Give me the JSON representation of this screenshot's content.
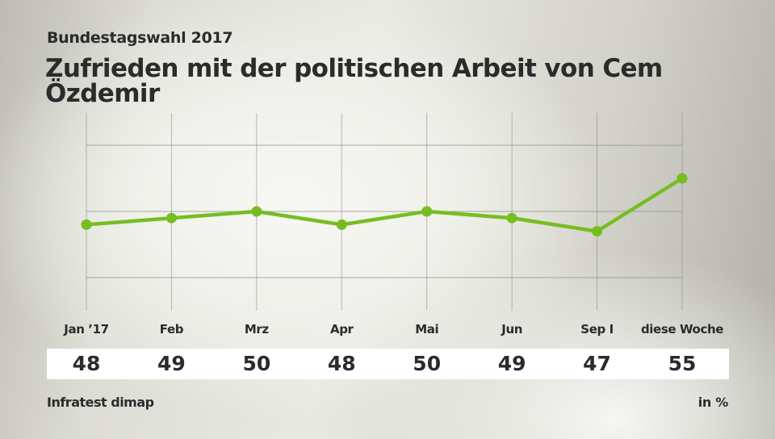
{
  "header": {
    "subtitle": "Bundestagswahl 2017",
    "title": "Zufrieden mit der politischen Arbeit von Cem Özdemir"
  },
  "footer": {
    "source": "Infratest dimap",
    "unit": "in %"
  },
  "colors": {
    "line": "#77bd22",
    "grid": "#8f8f8a"
  },
  "chart_data": {
    "type": "line",
    "title": "Zufrieden mit der politischen Arbeit von Cem Özdemir",
    "subtitle": "Bundestagswahl 2017",
    "xlabel": "",
    "ylabel": "in %",
    "categories": [
      "Jan ’17",
      "Feb",
      "Mrz",
      "Apr",
      "Mai",
      "Jun",
      "Sep I",
      "diese Woche"
    ],
    "series": [
      {
        "name": "Zufrieden",
        "values": [
          48,
          49,
          50,
          48,
          50,
          49,
          47,
          55
        ]
      }
    ],
    "value_labels": [
      "48",
      "49",
      "50",
      "48",
      "50",
      "49",
      "47",
      "55"
    ],
    "ylim": [
      40,
      60
    ],
    "y_gridlines": [
      40,
      50,
      60
    ],
    "grid": true,
    "legend": "none",
    "source": "Infratest dimap"
  }
}
